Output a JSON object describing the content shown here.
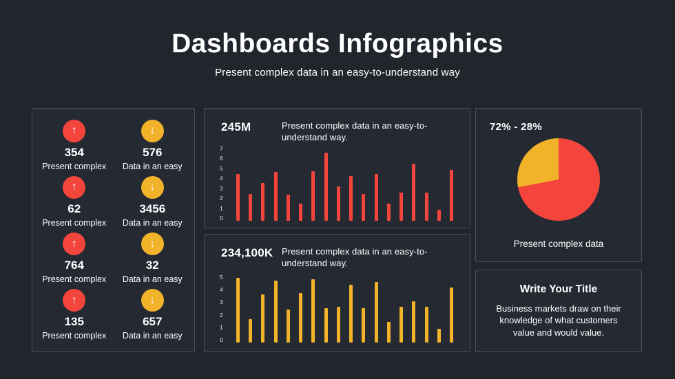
{
  "header": {
    "title": "Dashboards Infographics",
    "subtitle": "Present complex data in an easy-to-understand way"
  },
  "icons": {
    "up": "↑",
    "down": "↓"
  },
  "colors": {
    "background": "#21252C",
    "panel": "#242932",
    "panel_border": "#4A4F58",
    "red": "#F3453C",
    "yellow": "#F2B32A",
    "text": "#FFFFFF"
  },
  "stats": {
    "items": [
      {
        "direction": "up",
        "value": "354",
        "label": "Present complex"
      },
      {
        "direction": "down",
        "value": "576",
        "label": "Data in an easy"
      },
      {
        "direction": "up",
        "value": "62",
        "label": "Present complex"
      },
      {
        "direction": "down",
        "value": "3456",
        "label": "Data in an easy"
      },
      {
        "direction": "up",
        "value": "764",
        "label": "Present complex"
      },
      {
        "direction": "down",
        "value": "32",
        "label": "Data in an easy"
      },
      {
        "direction": "up",
        "value": "135",
        "label": "Present complex"
      },
      {
        "direction": "down",
        "value": "657",
        "label": "Data in an easy"
      }
    ]
  },
  "chart_data": [
    {
      "type": "bar",
      "title": "245M",
      "description": "Present complex data in an easy-to-understand way.",
      "color": "#F3453C",
      "ylim": [
        0,
        7
      ],
      "yticks": [
        7,
        6,
        5,
        4,
        3,
        2,
        1,
        0
      ],
      "grid": false,
      "values": [
        4.3,
        2.5,
        3.5,
        4.5,
        2.4,
        1.6,
        4.6,
        6.3,
        3.2,
        4.1,
        2.5,
        4.3,
        1.6,
        2.6,
        5.3,
        2.6,
        1.0,
        4.7
      ]
    },
    {
      "type": "bar",
      "title": "234,100K",
      "description": "Present complex data in an easy-to-understand way.",
      "color": "#F2B32A",
      "ylim": [
        0,
        5
      ],
      "yticks": [
        5,
        4,
        3,
        2,
        1,
        0
      ],
      "grid": false,
      "values": [
        4.7,
        1.7,
        3.5,
        4.5,
        2.4,
        3.6,
        4.6,
        2.5,
        2.6,
        4.2,
        2.5,
        4.4,
        1.5,
        2.6,
        3.0,
        2.6,
        1.0,
        4.0
      ]
    },
    {
      "type": "pie",
      "title": "72% - 28%",
      "caption": "Present complex data",
      "slices": [
        {
          "name": "major",
          "value": 72,
          "color": "#F3453C"
        },
        {
          "name": "minor",
          "value": 28,
          "color": "#F2B32A"
        }
      ]
    }
  ],
  "note": {
    "title": "Write Your Title",
    "body": "Business markets draw on their knowledge of what customers value and would value."
  }
}
